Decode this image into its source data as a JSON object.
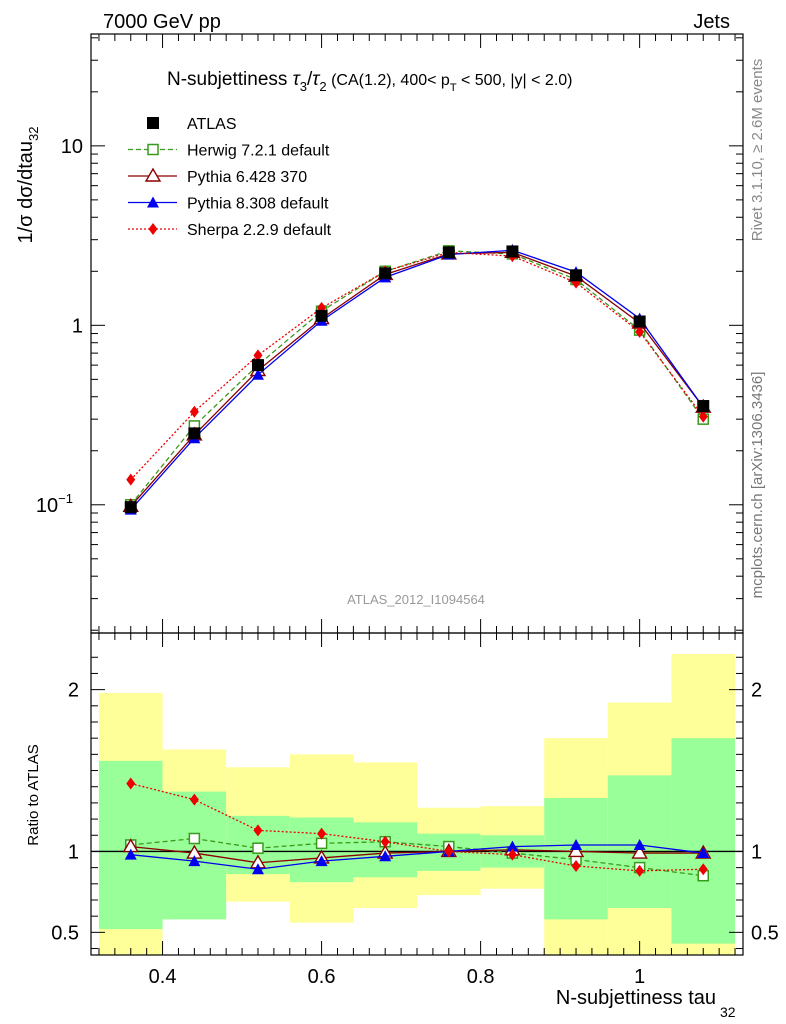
{
  "header": {
    "energy": "7000 GeV pp",
    "category": "Jets",
    "analysis_id": "ATLAS_2012_I1094564",
    "rivet": "Rivet 3.1.10, ≥ 2.6M events",
    "mcplots": "mcplots.cern.ch [arXiv:1306.3436]"
  },
  "colors": {
    "data": "#000000",
    "herwig": "#3a9a1a",
    "pythia6": "#8b0000",
    "pythia8": "#0000ee",
    "sherpa": "#ee0000",
    "band_inner": "#99ff99",
    "band_outer": "#ffff99"
  },
  "chart_data": [
    {
      "type": "line",
      "title": "N-subjettiness τ₃/τ₂ (CA(1.2), 400< p_T < 500, |y| < 2.0)",
      "title_parts": {
        "main": "N-subjettiness",
        "tau3": "τ",
        "sub3": "3",
        "slash": "/",
        "tau2": "τ",
        "sub2": "2",
        "rest": " (CA(1.2), 400< p",
        "subT": "T",
        "rest2": " < 500, |y| < 2.0)"
      },
      "ylabel": "1/σ dσ/dtau",
      "ylabel_sub": "32",
      "yscale": "log",
      "ylim": [
        0.0193,
        42
      ],
      "xlim": [
        0.31,
        1.13
      ],
      "yticks": [
        {
          "value": 10,
          "label": "10"
        },
        {
          "value": 1,
          "label": "1"
        },
        {
          "value": 0.1,
          "label": "10",
          "sup": "−1"
        }
      ],
      "x": [
        0.36,
        0.44,
        0.52,
        0.6,
        0.68,
        0.76,
        0.84,
        0.92,
        1.0,
        1.08
      ],
      "series": [
        {
          "name": "ATLAS",
          "key": "data",
          "marker": "square-filled",
          "values": [
            0.097,
            0.25,
            0.6,
            1.13,
            1.95,
            2.55,
            2.58,
            1.9,
            1.05,
            0.355
          ]
        },
        {
          "name": "Herwig 7.2.1 default",
          "key": "herwig",
          "marker": "square-open",
          "dash": "5,3",
          "values": [
            0.1,
            0.275,
            0.6,
            1.2,
            2.0,
            2.6,
            2.5,
            1.8,
            0.94,
            0.3
          ]
        },
        {
          "name": "Pythia 6.428 370",
          "key": "pythia6",
          "marker": "triangle-open",
          "dash": "",
          "values": [
            0.098,
            0.245,
            0.56,
            1.09,
            1.92,
            2.5,
            2.55,
            1.88,
            1.03,
            0.35
          ]
        },
        {
          "name": "Pythia 8.308 default",
          "key": "pythia8",
          "marker": "triangle-filled",
          "dash": "",
          "values": [
            0.094,
            0.235,
            0.53,
            1.06,
            1.85,
            2.48,
            2.62,
            1.98,
            1.09,
            0.35
          ]
        },
        {
          "name": "Sherpa 2.2.9 default",
          "key": "sherpa",
          "marker": "diamond-filled",
          "dash": "2,2",
          "values": [
            0.138,
            0.33,
            0.68,
            1.25,
            2.0,
            2.55,
            2.43,
            1.73,
            0.92,
            0.31
          ]
        }
      ]
    },
    {
      "type": "line",
      "ylabel": "Ratio to ATLAS",
      "xlabel": "N-subjettiness tau",
      "xlabel_sub": "32",
      "ylim": [
        0.36,
        2.35
      ],
      "xlim": [
        0.31,
        1.13
      ],
      "yticks": [
        {
          "value": 2,
          "label": "2"
        },
        {
          "value": 1,
          "label": "1"
        },
        {
          "value": 0.5,
          "label": "0.5"
        }
      ],
      "xticks": [
        {
          "value": 0.4,
          "label": "0.4"
        },
        {
          "value": 0.6,
          "label": "0.6"
        },
        {
          "value": 0.8,
          "label": "0.8"
        },
        {
          "value": 1.0,
          "label": "1"
        }
      ],
      "bin_edges": [
        0.32,
        0.4,
        0.48,
        0.56,
        0.64,
        0.72,
        0.8,
        0.88,
        0.96,
        1.04,
        1.12
      ],
      "band_inner_low": [
        0.52,
        0.58,
        0.86,
        0.81,
        0.84,
        0.88,
        0.9,
        0.58,
        0.65,
        0.43
      ],
      "band_inner_high": [
        1.56,
        1.37,
        1.22,
        1.21,
        1.18,
        1.11,
        1.1,
        1.33,
        1.47,
        1.7
      ],
      "band_outer_low": [
        0.3,
        0.79,
        0.69,
        0.56,
        0.65,
        0.73,
        0.77,
        0.3,
        0.3,
        0.3
      ],
      "band_outer_high": [
        1.98,
        1.63,
        1.52,
        1.6,
        1.55,
        1.27,
        1.28,
        1.7,
        1.92,
        2.22
      ],
      "x": [
        0.36,
        0.44,
        0.52,
        0.6,
        0.68,
        0.76,
        0.84,
        0.92,
        1.0,
        1.08
      ],
      "series": [
        {
          "name": "Herwig 7.2.1 default",
          "key": "herwig",
          "marker": "square-open",
          "dash": "5,3",
          "values": [
            1.04,
            1.08,
            1.02,
            1.05,
            1.06,
            1.03,
            0.99,
            0.95,
            0.9,
            0.85
          ]
        },
        {
          "name": "Pythia 6.428 370",
          "key": "pythia6",
          "marker": "triangle-open",
          "dash": "",
          "values": [
            1.03,
            0.99,
            0.93,
            0.96,
            0.99,
            1.0,
            1.01,
            1.0,
            0.99,
            0.99
          ]
        },
        {
          "name": "Pythia 8.308 default",
          "key": "pythia8",
          "marker": "triangle-filled",
          "dash": "",
          "values": [
            0.98,
            0.94,
            0.89,
            0.94,
            0.97,
            1.0,
            1.03,
            1.04,
            1.04,
            0.99
          ]
        },
        {
          "name": "Sherpa 2.2.9 default",
          "key": "sherpa",
          "marker": "diamond-filled",
          "dash": "2,2",
          "values": [
            1.42,
            1.32,
            1.13,
            1.11,
            1.06,
            1.0,
            0.98,
            0.91,
            0.88,
            0.89
          ]
        }
      ]
    }
  ]
}
